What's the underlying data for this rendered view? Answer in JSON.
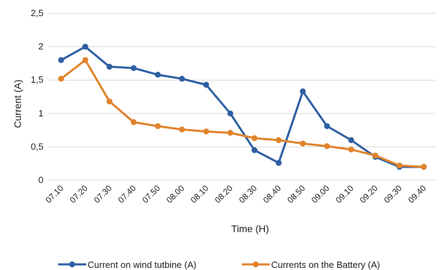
{
  "chart_data": {
    "type": "line",
    "title": "",
    "xlabel": "Time (H)",
    "ylabel": "Current (A)",
    "ylim": [
      0,
      2.5
    ],
    "y_ticks": [
      "0",
      "0,5",
      "1",
      "1,5",
      "2",
      "2,5"
    ],
    "categories": [
      "07.10",
      "07.20",
      "07.30",
      "07.40",
      "07.50",
      "08.00",
      "08.10",
      "08.20",
      "08.30",
      "08.40",
      "08.50",
      "09.00",
      "09.10",
      "09.20",
      "09.30",
      "09.40"
    ],
    "grid": true,
    "legend_position": "bottom",
    "series": [
      {
        "name": "Current on wind tutbine (A)",
        "color": "#2E5FA3",
        "values": [
          1.8,
          2.0,
          1.7,
          1.68,
          1.58,
          1.52,
          1.43,
          1.0,
          0.45,
          0.26,
          1.33,
          0.81,
          0.6,
          0.35,
          0.2,
          0.2
        ]
      },
      {
        "name": "Currents on the Battery (A)",
        "color": "#E0832B",
        "values": [
          1.52,
          1.8,
          1.18,
          0.87,
          0.81,
          0.76,
          0.73,
          0.71,
          0.63,
          0.6,
          0.55,
          0.51,
          0.46,
          0.37,
          0.22,
          0.2
        ]
      }
    ]
  }
}
